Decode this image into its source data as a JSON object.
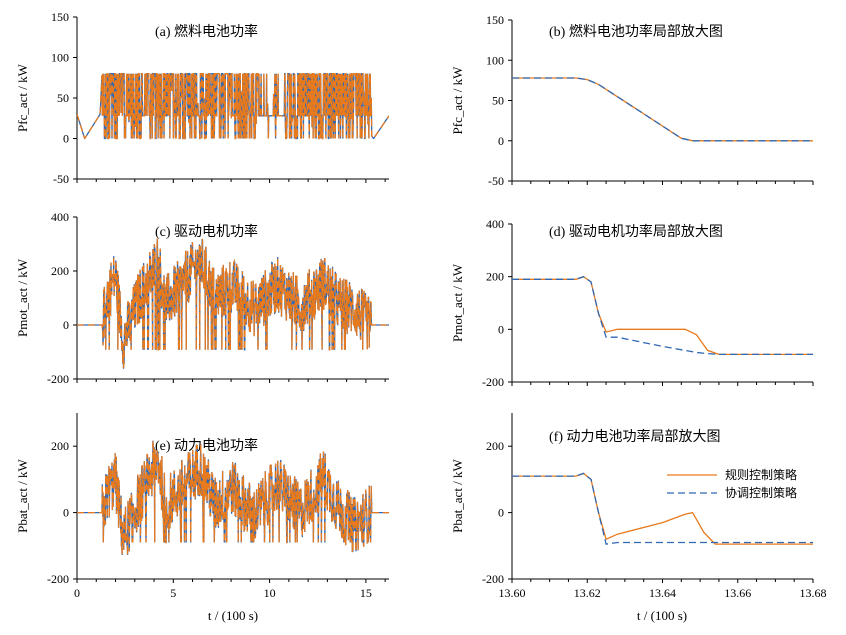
{
  "colors": {
    "rule": "#e87a1e",
    "coordinated": "#2f68b3"
  },
  "figure_xlabel": "t / (100 s)",
  "chart_data": [
    {
      "id": "a",
      "type": "line",
      "title": "(a) 燃料电池功率",
      "ylabel": "Pfc_act / kW",
      "xlim": [
        0,
        16.2
      ],
      "ylim": [
        -50,
        150
      ],
      "yticks": [
        "150",
        "100",
        "50",
        "0",
        "-50"
      ],
      "xticks": [],
      "series": [
        {
          "name": "规则控制策略",
          "color": "#e87a1e",
          "dashed": true,
          "x": [
            0,
            0.4,
            1.2,
            1.3,
            2.6,
            3.8,
            5.0,
            6.2,
            7.4,
            8.6,
            9.6,
            10.8,
            11.2,
            12.0,
            12.7,
            13.2,
            14.4,
            15.4,
            16.2
          ],
          "y": [
            30,
            0,
            30,
            80,
            10,
            80,
            25,
            80,
            30,
            80,
            28,
            28,
            80,
            28,
            80,
            10,
            28,
            0,
            28
          ]
        },
        {
          "name": "协调控制策略",
          "color": "#2f68b3",
          "dashed": false,
          "x": [
            0,
            0.4,
            1.2,
            1.3,
            2.6,
            3.8,
            5.0,
            6.2,
            7.4,
            8.6,
            9.6,
            10.8,
            11.2,
            12.0,
            12.7,
            13.2,
            14.4,
            15.4,
            16.2
          ],
          "y": [
            30,
            0,
            30,
            80,
            10,
            80,
            25,
            80,
            30,
            80,
            28,
            28,
            80,
            28,
            80,
            10,
            28,
            0,
            28
          ]
        }
      ]
    },
    {
      "id": "b",
      "type": "line",
      "title": "(b) 燃料电池功率局部放大图",
      "ylabel": "Pfc_act / kW",
      "xlim": [
        13.6,
        13.68
      ],
      "ylim": [
        -50,
        150
      ],
      "yticks": [
        "150",
        "100",
        "50",
        "0",
        "-50"
      ],
      "xticks": [],
      "series": [
        {
          "name": "规则控制策略",
          "color": "#e87a1e",
          "dashed": false,
          "x": [
            13.6,
            13.617,
            13.62,
            13.623,
            13.645,
            13.648,
            13.68
          ],
          "y": [
            78,
            78,
            76,
            70,
            3,
            0,
            0
          ]
        },
        {
          "name": "协调控制策略",
          "color": "#2f68b3",
          "dashed": true,
          "x": [
            13.6,
            13.617,
            13.62,
            13.623,
            13.645,
            13.648,
            13.68
          ],
          "y": [
            78,
            78,
            76,
            70,
            3,
            0,
            0
          ]
        }
      ]
    },
    {
      "id": "c",
      "type": "line",
      "title": "(c) 驱动电机功率",
      "ylabel": "Pmot_act / kW",
      "xlim": [
        0,
        16.2
      ],
      "ylim": [
        -200,
        400
      ],
      "yticks": [
        "400",
        "200",
        "0",
        "-200"
      ],
      "xticks": [],
      "series": [
        {
          "name": "规则控制策略",
          "color": "#e87a1e",
          "dashed": true,
          "x": [
            0,
            1.3,
            1.6,
            2.0,
            2.4,
            3.2,
            4.2,
            4.6,
            5.2,
            6.4,
            7.2,
            8.0,
            9.2,
            10.4,
            11.6,
            12.8,
            13.6,
            14.4,
            15.2,
            16.2
          ],
          "y": [
            0,
            0,
            120,
            180,
            -60,
            100,
            240,
            80,
            130,
            240,
            100,
            150,
            60,
            150,
            70,
            160,
            80,
            60,
            0,
            0
          ]
        },
        {
          "name": "协调控制策略",
          "color": "#2f68b3",
          "dashed": false,
          "x": [
            0,
            1.3,
            1.6,
            2.0,
            2.4,
            3.2,
            4.2,
            4.6,
            5.2,
            6.4,
            7.2,
            8.0,
            9.2,
            10.4,
            11.6,
            12.8,
            13.6,
            14.4,
            15.2,
            16.2
          ],
          "y": [
            0,
            0,
            120,
            180,
            -60,
            100,
            240,
            80,
            130,
            240,
            100,
            150,
            60,
            150,
            70,
            160,
            80,
            60,
            0,
            0
          ]
        }
      ]
    },
    {
      "id": "d",
      "type": "line",
      "title": "(d) 驱动电机功率局部放大图",
      "ylabel": "Pmot_act / kW",
      "xlim": [
        13.6,
        13.68
      ],
      "ylim": [
        -200,
        400
      ],
      "yticks": [
        "400",
        "200",
        "0",
        "-200"
      ],
      "xticks": [],
      "series": [
        {
          "name": "规则控制策略",
          "color": "#e87a1e",
          "dashed": false,
          "x": [
            13.6,
            13.617,
            13.619,
            13.621,
            13.623,
            13.625,
            13.628,
            13.64,
            13.646,
            13.649,
            13.652,
            13.655,
            13.68
          ],
          "y": [
            190,
            190,
            200,
            180,
            60,
            -10,
            0,
            0,
            0,
            -20,
            -80,
            -95,
            -95
          ]
        },
        {
          "name": "协调控制策略",
          "color": "#2f68b3",
          "dashed": true,
          "x": [
            13.6,
            13.617,
            13.619,
            13.621,
            13.623,
            13.625,
            13.628,
            13.64,
            13.646,
            13.649,
            13.652,
            13.655,
            13.68
          ],
          "y": [
            190,
            190,
            200,
            180,
            60,
            -30,
            -30,
            -65,
            -80,
            -88,
            -92,
            -95,
            -95
          ]
        }
      ]
    },
    {
      "id": "e",
      "type": "line",
      "title": "(e) 动力电池功率",
      "ylabel": "Pbat_act / kW",
      "xlim": [
        0,
        16.2
      ],
      "ylim": [
        -200,
        300
      ],
      "yticks": [
        "200",
        "0",
        "-200"
      ],
      "xticks": [
        "0",
        "5",
        "10",
        "15"
      ],
      "series": [
        {
          "name": "规则控制策略",
          "color": "#e87a1e",
          "dashed": true,
          "x": [
            0,
            1.3,
            1.6,
            2.0,
            2.4,
            3.2,
            4.2,
            4.6,
            5.2,
            6.4,
            7.2,
            8.0,
            9.2,
            10.4,
            11.6,
            12.8,
            13.6,
            14.4,
            15.2,
            16.2
          ],
          "y": [
            0,
            0,
            60,
            100,
            -80,
            40,
            160,
            20,
            60,
            140,
            20,
            80,
            -10,
            90,
            0,
            110,
            10,
            -40,
            0,
            0
          ]
        },
        {
          "name": "协调控制策略",
          "color": "#2f68b3",
          "dashed": false,
          "x": [
            0,
            1.3,
            1.6,
            2.0,
            2.4,
            3.2,
            4.2,
            4.6,
            5.2,
            6.4,
            7.2,
            8.0,
            9.2,
            10.4,
            11.6,
            12.8,
            13.6,
            14.4,
            15.2,
            16.2
          ],
          "y": [
            0,
            0,
            60,
            100,
            -80,
            40,
            160,
            20,
            60,
            140,
            20,
            80,
            -10,
            90,
            0,
            110,
            10,
            -40,
            0,
            0
          ]
        }
      ]
    },
    {
      "id": "f",
      "type": "line",
      "title": "(f) 动力电池功率局部放大图",
      "ylabel": "Pbat_act / kW",
      "xlim": [
        13.6,
        13.68
      ],
      "ylim": [
        -200,
        300
      ],
      "yticks": [
        "200",
        "0",
        "-200"
      ],
      "xticks": [
        "13.60",
        "13.62",
        "13.64",
        "13.66",
        "13.68"
      ],
      "legend": {
        "position": "right",
        "entries": [
          "规则控制策略",
          "协调控制策略"
        ]
      },
      "series": [
        {
          "name": "规则控制策略",
          "color": "#e87a1e",
          "dashed": false,
          "x": [
            13.6,
            13.617,
            13.619,
            13.621,
            13.623,
            13.625,
            13.628,
            13.64,
            13.646,
            13.648,
            13.651,
            13.654,
            13.68
          ],
          "y": [
            110,
            110,
            118,
            100,
            0,
            -80,
            -65,
            -30,
            -5,
            0,
            -60,
            -95,
            -95
          ]
        },
        {
          "name": "协调控制策略",
          "color": "#2f68b3",
          "dashed": true,
          "x": [
            13.6,
            13.617,
            13.619,
            13.621,
            13.623,
            13.625,
            13.628,
            13.64,
            13.646,
            13.648,
            13.651,
            13.654,
            13.68
          ],
          "y": [
            110,
            110,
            118,
            100,
            0,
            -95,
            -90,
            -90,
            -90,
            -90,
            -90,
            -90,
            -90
          ]
        }
      ]
    }
  ]
}
